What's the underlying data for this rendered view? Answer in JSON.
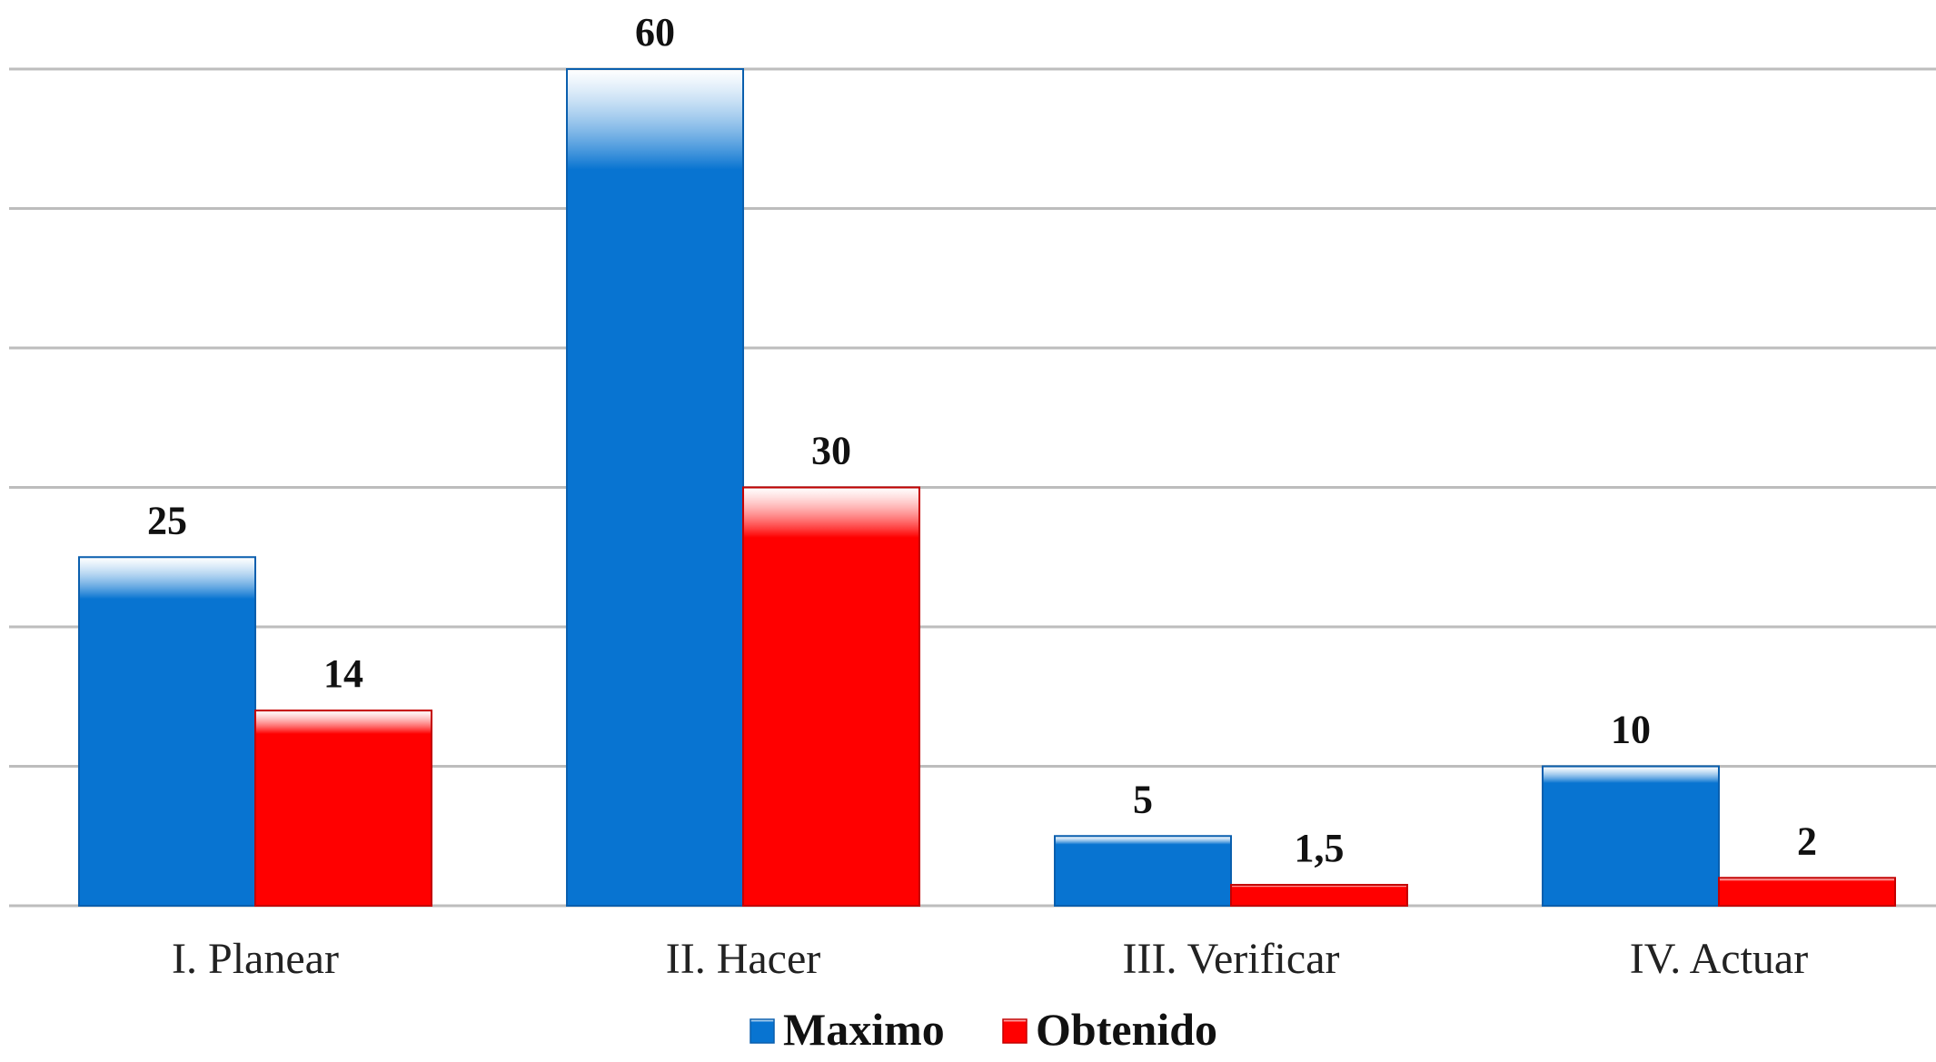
{
  "chart_data": {
    "type": "bar",
    "categories": [
      "I. Planear",
      "II. Hacer",
      "III. Verificar",
      "IV. Actuar"
    ],
    "series": [
      {
        "name": "Maximo",
        "values": [
          25,
          60,
          5,
          10
        ],
        "labels": [
          "25",
          "60",
          "5",
          "10"
        ],
        "color": "#0874d1"
      },
      {
        "name": "Obtenido",
        "values": [
          14,
          30,
          1.5,
          2
        ],
        "labels": [
          "14",
          "30",
          "1,5",
          "2"
        ],
        "color": "#ff0000"
      }
    ],
    "title": "",
    "xlabel": "",
    "ylabel": "",
    "ylim": [
      0,
      60
    ],
    "y_grid_step": 10,
    "grid": true,
    "y_tick_labels_shown": false,
    "legend_position": "bottom"
  }
}
